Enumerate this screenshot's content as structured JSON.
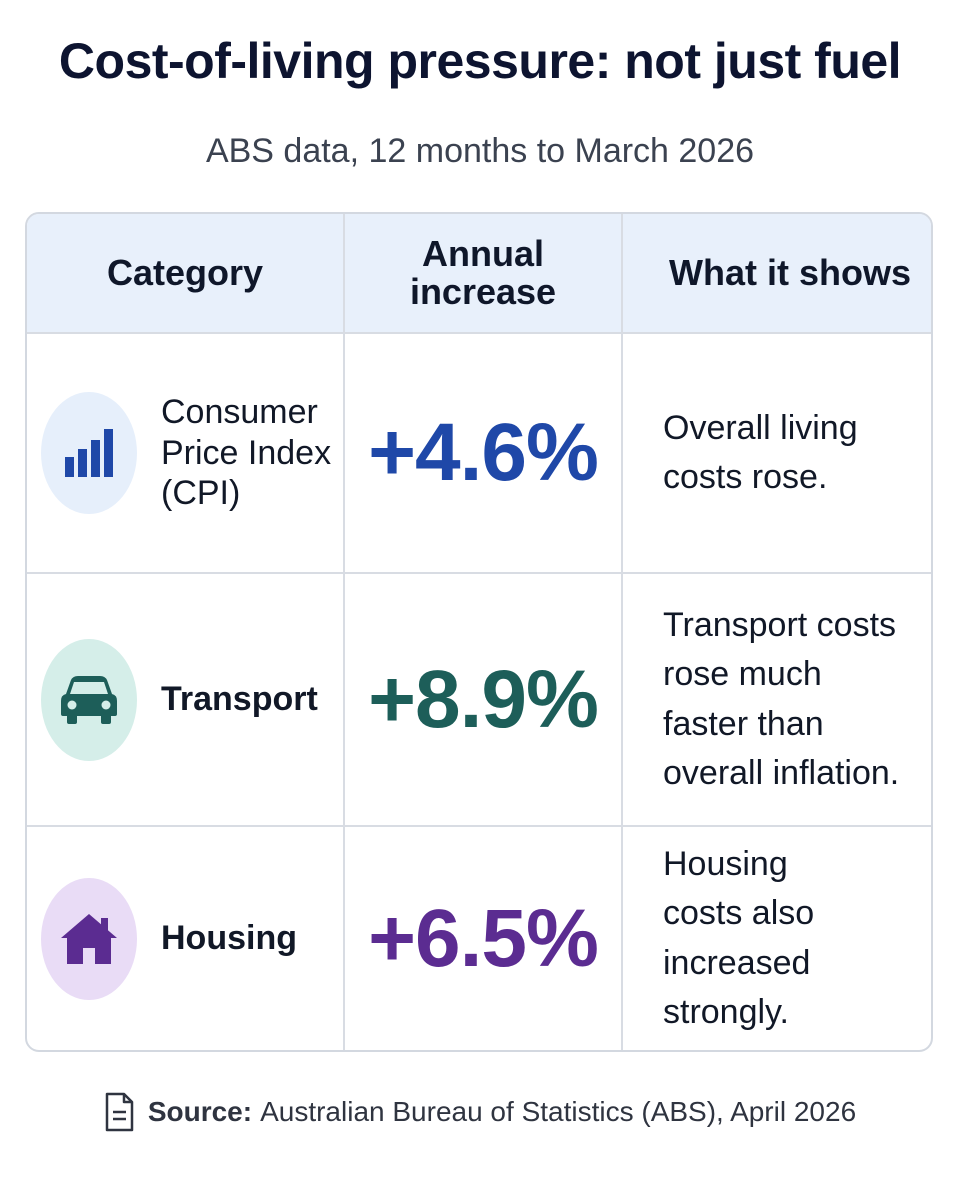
{
  "title": "Cost-of-living pressure: not just fuel",
  "subtitle": "ABS data, 12 months to March 2026",
  "table": {
    "headers": {
      "category": "Category",
      "annual_increase": "Annual increase",
      "what_it_shows": "What it shows"
    }
  },
  "chart_data": {
    "type": "table",
    "title": "Cost-of-living pressure: not just fuel",
    "subtitle": "ABS data, 12 months to March 2026",
    "columns": [
      "Category",
      "Annual increase",
      "What it shows"
    ],
    "rows": [
      {
        "category": "Consumer Price Index (CPI)",
        "value": 4.6,
        "value_label": "+4.6%",
        "description": "Overall living costs rose.",
        "icon": "bar-chart-icon",
        "color": "#1f48a8",
        "icon_bg": "#e6effb"
      },
      {
        "category": "Transport",
        "value": 8.9,
        "value_label": "+8.9%",
        "description": "Transport costs rose much faster than overall inflation.",
        "icon": "car-icon",
        "color": "#1d5e59",
        "icon_bg": "#d5eee9"
      },
      {
        "category": "Housing",
        "value": 6.5,
        "value_label": "+6.5%",
        "description": "Housing costs also increased strongly.",
        "icon": "house-icon",
        "color": "#5b2c91",
        "icon_bg": "#e9dcf6"
      }
    ]
  },
  "source": {
    "icon": "document-icon",
    "label": "Source:",
    "text": "Australian Bureau of Statistics (ABS), April 2026"
  }
}
